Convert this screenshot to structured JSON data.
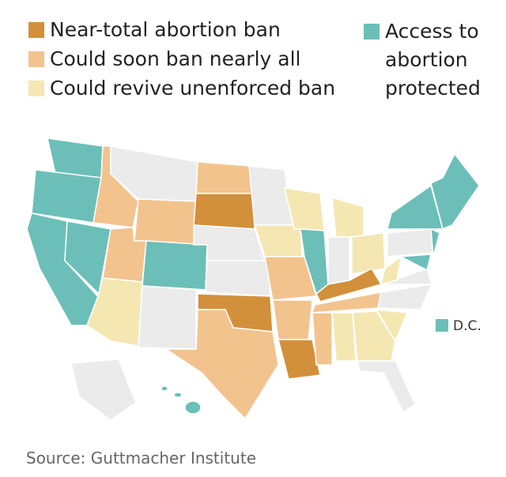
{
  "legend": [
    {
      "label": "Near-total abortion ban",
      "color": "#d3903b"
    },
    {
      "label": "Could soon ban nearly all",
      "color": "#f3c38e"
    },
    {
      "label": "Could revive unenforced ban",
      "color": "#f4e7b2"
    },
    {
      "label": "Access to abortion protected",
      "color": "#6bbfb8"
    }
  ],
  "dc_label": "D.C.",
  "source": "Source: Guttmacher Institute"
}
